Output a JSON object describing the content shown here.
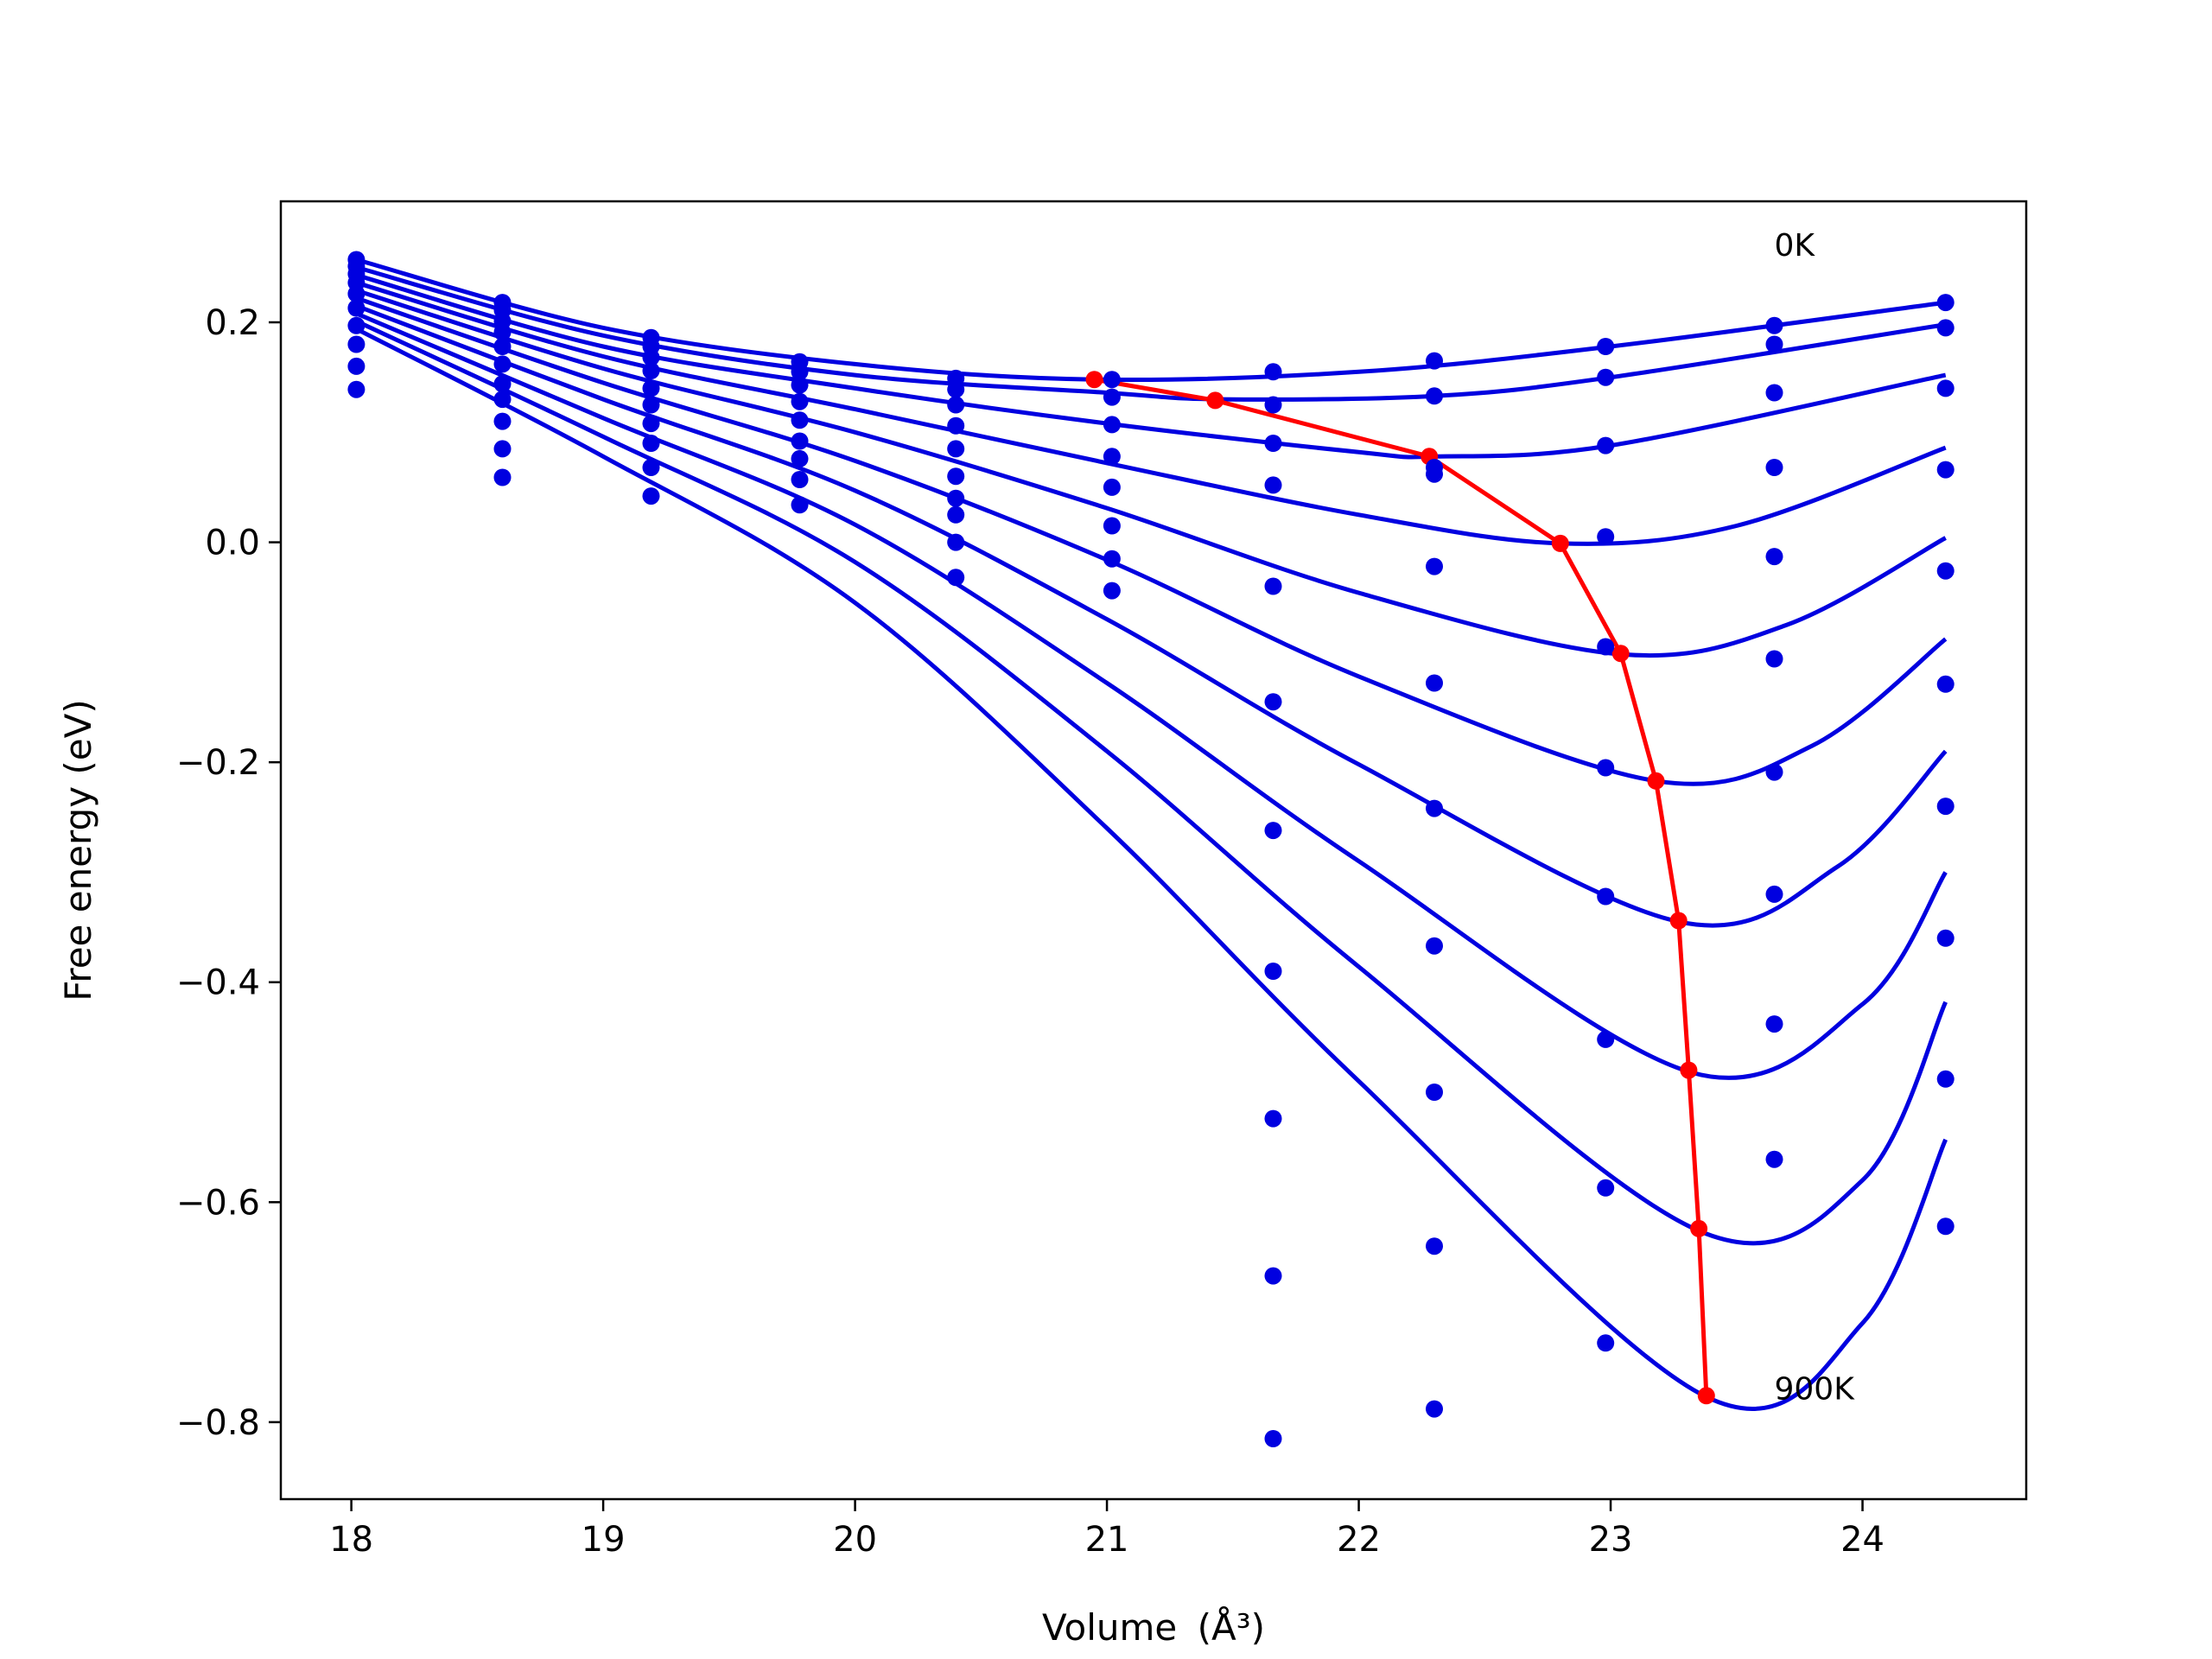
{
  "chart_data": {
    "type": "scatter",
    "title": "",
    "xlabel": "Volume",
    "xlabel_unit": "(Å³)",
    "ylabel": "Free energy (eV)",
    "xlim": [
      17.72,
      24.65
    ],
    "ylim": [
      -0.87,
      0.31
    ],
    "xticks": [
      18,
      19,
      20,
      21,
      22,
      23,
      24
    ],
    "yticks": [
      -0.8,
      -0.6,
      -0.4,
      -0.2,
      0.0,
      0.2
    ],
    "ytick_labels": [
      "−0.8",
      "−0.6",
      "−0.4",
      "−0.2",
      "0.0",
      "0.2"
    ],
    "xtick_labels": [
      "18",
      "19",
      "20",
      "21",
      "22",
      "23",
      "24"
    ],
    "grid": false,
    "legend": "none",
    "annotations": [
      {
        "text": "0K",
        "x": 23.65,
        "y": 0.27
      },
      {
        "text": "900K",
        "x": 23.65,
        "y": -0.77
      }
    ],
    "colors": {
      "curves": "#0000e0",
      "points": "#0000e0",
      "minima": "#ff0000"
    },
    "volumes": [
      18.02,
      18.6,
      19.19,
      19.78,
      20.4,
      21.02,
      21.66,
      22.3,
      22.98,
      23.65,
      24.33
    ],
    "series": [
      {
        "values": [
          0.257,
          0.218,
          0.186,
          0.164,
          0.149,
          0.148,
          0.155,
          0.165,
          0.178,
          0.197,
          0.218
        ]
      },
      {
        "values": [
          0.251,
          0.211,
          0.178,
          0.155,
          0.139,
          0.132,
          0.125,
          0.133,
          0.15,
          0.18,
          0.195
        ]
      },
      {
        "values": [
          0.244,
          0.201,
          0.168,
          0.143,
          0.125,
          0.107,
          0.09,
          0.068,
          0.088,
          0.136,
          0.14
        ]
      },
      {
        "values": [
          0.236,
          0.191,
          0.156,
          0.128,
          0.106,
          0.078,
          0.052,
          0.062,
          0.005,
          0.068,
          0.066
        ]
      },
      {
        "values": [
          0.226,
          0.178,
          0.14,
          0.111,
          0.085,
          0.05,
          -0.04,
          -0.022,
          -0.095,
          -0.013,
          -0.026
        ]
      },
      {
        "values": [
          0.213,
          0.162,
          0.125,
          0.092,
          0.06,
          0.015,
          -0.145,
          -0.128,
          -0.205,
          -0.106,
          -0.129
        ]
      },
      {
        "values": [
          0.197,
          0.144,
          0.108,
          0.076,
          0.04,
          -0.015,
          -0.262,
          -0.242,
          -0.322,
          -0.209,
          -0.24
        ]
      },
      {
        "values": [
          0.18,
          0.13,
          0.09,
          0.057,
          0.025,
          -0.044,
          -0.39,
          -0.367,
          -0.452,
          -0.32,
          -0.36
        ]
      },
      {
        "values": [
          0.16,
          0.11,
          0.068,
          0.034,
          0.0,
          null,
          -0.524,
          -0.5,
          -0.587,
          -0.438,
          -0.488
        ]
      },
      {
        "values": [
          0.139,
          0.085,
          0.042,
          null,
          -0.032,
          null,
          -0.667,
          -0.64,
          -0.728,
          -0.561,
          -0.622
        ]
      },
      {
        "values": [
          null,
          0.059,
          null,
          null,
          null,
          null,
          -0.815,
          -0.788,
          null,
          null,
          null
        ]
      }
    ],
    "fit_curves": [
      {
        "temperature": "0K",
        "x": [
          18.02,
          19.0,
          20.0,
          20.95,
          22.0,
          23.0,
          24.33
        ],
        "y": [
          0.257,
          0.195,
          0.162,
          0.148,
          0.155,
          0.178,
          0.218
        ]
      },
      {
        "x": [
          18.02,
          19.0,
          20.0,
          21.0,
          21.45,
          22.3,
          23.0,
          24.33
        ],
        "y": [
          0.25,
          0.188,
          0.152,
          0.136,
          0.13,
          0.133,
          0.15,
          0.198
        ]
      },
      {
        "x": [
          18.02,
          19.0,
          20.0,
          21.0,
          22.0,
          22.3,
          23.0,
          24.33
        ],
        "y": [
          0.243,
          0.178,
          0.14,
          0.108,
          0.082,
          0.078,
          0.088,
          0.152
        ]
      },
      {
        "x": [
          18.02,
          19.0,
          20.0,
          21.0,
          22.0,
          22.8,
          23.5,
          24.33
        ],
        "y": [
          0.236,
          0.169,
          0.121,
          0.072,
          0.025,
          -0.001,
          0.015,
          0.086
        ]
      },
      {
        "x": [
          18.02,
          19.0,
          20.0,
          21.0,
          22.0,
          23.05,
          23.7,
          24.33
        ],
        "y": [
          0.229,
          0.158,
          0.1,
          0.031,
          -0.046,
          -0.102,
          -0.075,
          0.004
        ]
      },
      {
        "x": [
          18.02,
          19.0,
          20.0,
          21.0,
          22.0,
          23.18,
          23.8,
          24.33
        ],
        "y": [
          0.222,
          0.145,
          0.074,
          -0.016,
          -0.122,
          -0.217,
          -0.185,
          -0.088
        ]
      },
      {
        "x": [
          18.02,
          19.0,
          20.0,
          21.0,
          22.0,
          23.27,
          23.9,
          24.33
        ],
        "y": [
          0.215,
          0.13,
          0.047,
          -0.07,
          -0.202,
          -0.345,
          -0.295,
          -0.19
        ]
      },
      {
        "x": [
          18.02,
          19.0,
          20.0,
          21.0,
          22.0,
          23.32,
          24.0,
          24.33
        ],
        "y": [
          0.208,
          0.113,
          0.016,
          -0.128,
          -0.29,
          -0.482,
          -0.42,
          -0.3
        ]
      },
      {
        "x": [
          18.02,
          19.0,
          20.0,
          21.0,
          22.0,
          23.35,
          24.0,
          24.33
        ],
        "y": [
          0.201,
          0.096,
          -0.018,
          -0.19,
          -0.386,
          -0.626,
          -0.58,
          -0.418
        ]
      },
      {
        "temperature": "900K",
        "x": [
          18.02,
          19.0,
          20.0,
          21.0,
          22.0,
          23.38,
          24.0,
          24.33
        ],
        "y": [
          0.194,
          0.078,
          -0.055,
          -0.26,
          -0.49,
          -0.777,
          -0.71,
          -0.543
        ]
      }
    ],
    "minima": {
      "x": [
        20.95,
        21.43,
        22.28,
        22.8,
        23.04,
        23.18,
        23.27,
        23.31,
        23.35,
        23.38
      ],
      "y": [
        0.148,
        0.129,
        0.078,
        -0.001,
        -0.101,
        -0.217,
        -0.344,
        -0.48,
        -0.624,
        -0.776
      ]
    }
  }
}
